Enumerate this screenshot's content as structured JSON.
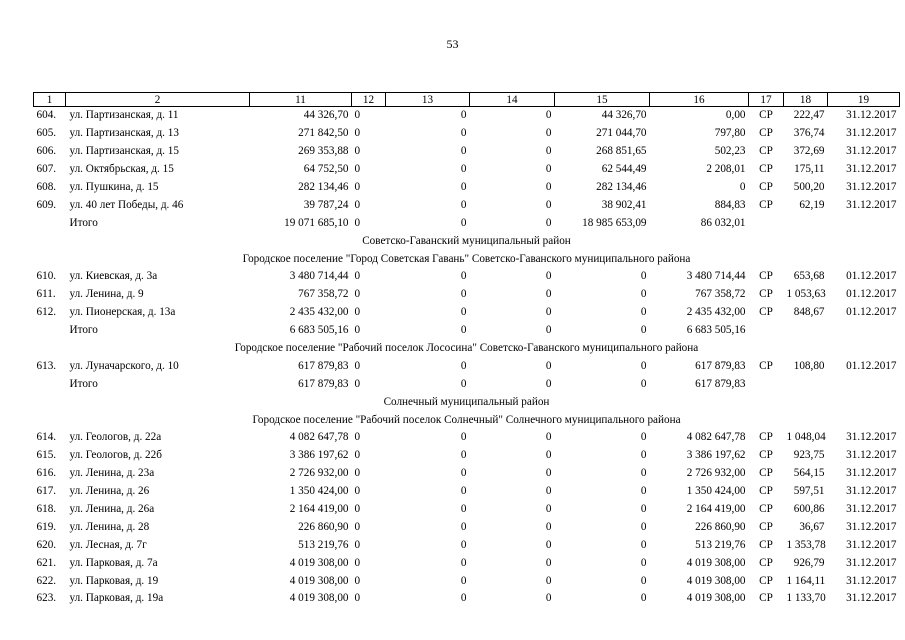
{
  "page_number": "53",
  "columns": [
    "1",
    "2",
    "11",
    "12",
    "13",
    "14",
    "15",
    "16",
    "17",
    "18",
    "19"
  ],
  "rows": [
    {
      "type": "data",
      "cells": [
        "604.",
        "ул. Партизанская, д. 11",
        "44 326,70",
        "0",
        "0",
        "0",
        "44 326,70",
        "0,00",
        "СР",
        "222,47",
        "31.12.2017"
      ]
    },
    {
      "type": "data",
      "cells": [
        "605.",
        "ул. Партизанская, д. 13",
        "271 842,50",
        "0",
        "0",
        "0",
        "271 044,70",
        "797,80",
        "СР",
        "376,74",
        "31.12.2017"
      ]
    },
    {
      "type": "data",
      "cells": [
        "606.",
        "ул. Партизанская, д. 15",
        "269 353,88",
        "0",
        "0",
        "0",
        "268 851,65",
        "502,23",
        "СР",
        "372,69",
        "31.12.2017"
      ]
    },
    {
      "type": "data",
      "cells": [
        "607.",
        "ул. Октябрьская, д. 15",
        "64 752,50",
        "0",
        "0",
        "0",
        "62 544,49",
        "2 208,01",
        "СР",
        "175,11",
        "31.12.2017"
      ]
    },
    {
      "type": "data",
      "cells": [
        "608.",
        "ул. Пушкина, д. 15",
        "282 134,46",
        "0",
        "0",
        "0",
        "282 134,46",
        "0",
        "СР",
        "500,20",
        "31.12.2017"
      ]
    },
    {
      "type": "data",
      "cells": [
        "609.",
        "ул. 40 лет Победы, д. 46",
        "39 787,24",
        "0",
        "0",
        "0",
        "38 902,41",
        "884,83",
        "СР",
        "62,19",
        "31.12.2017"
      ]
    },
    {
      "type": "data",
      "cells": [
        "",
        "Итого",
        "19 071 685,10",
        "0",
        "0",
        "0",
        "18 985 653,09",
        "86 032,01",
        "",
        "",
        ""
      ]
    },
    {
      "type": "section",
      "text": "Советско-Гаванский муниципальный район"
    },
    {
      "type": "section",
      "text": "Городское поселение \"Город Советская Гавань\" Советско-Гаванского муниципального района"
    },
    {
      "type": "data",
      "cells": [
        "610.",
        "ул. Киевская, д. 3а",
        "3 480 714,44",
        "0",
        "0",
        "0",
        "0",
        "3 480 714,44",
        "СР",
        "653,68",
        "01.12.2017"
      ]
    },
    {
      "type": "data",
      "cells": [
        "611.",
        "ул. Ленина, д. 9",
        "767 358,72",
        "0",
        "0",
        "0",
        "0",
        "767 358,72",
        "СР",
        "1 053,63",
        "01.12.2017"
      ]
    },
    {
      "type": "data",
      "cells": [
        "612.",
        "ул. Пионерская, д. 13а",
        "2 435 432,00",
        "0",
        "0",
        "0",
        "0",
        "2 435 432,00",
        "СР",
        "848,67",
        "01.12.2017"
      ]
    },
    {
      "type": "data",
      "cells": [
        "",
        "Итого",
        "6 683 505,16",
        "0",
        "0",
        "0",
        "0",
        "6 683 505,16",
        "",
        "",
        ""
      ]
    },
    {
      "type": "section",
      "text": "Городское поселение \"Рабочий поселок Лососина\" Советско-Гаванского муниципального района"
    },
    {
      "type": "data",
      "cells": [
        "613.",
        "ул. Луначарского, д. 10",
        "617 879,83",
        "0",
        "0",
        "0",
        "0",
        "617 879,83",
        "СР",
        "108,80",
        "01.12.2017"
      ]
    },
    {
      "type": "data",
      "cells": [
        "",
        "Итого",
        "617 879,83",
        "0",
        "0",
        "0",
        "0",
        "617 879,83",
        "",
        "",
        ""
      ]
    },
    {
      "type": "section",
      "text": "Солнечный муниципальный район"
    },
    {
      "type": "section",
      "text": "Городское поселение \"Рабочий поселок Солнечный\" Солнечного муниципального района"
    },
    {
      "type": "data",
      "cells": [
        "614.",
        "ул. Геологов, д. 22а",
        "4 082 647,78",
        "0",
        "0",
        "0",
        "0",
        "4 082 647,78",
        "СР",
        "1 048,04",
        "31.12.2017"
      ]
    },
    {
      "type": "data",
      "cells": [
        "615.",
        "ул. Геологов, д. 22б",
        "3 386 197,62",
        "0",
        "0",
        "0",
        "0",
        "3 386 197,62",
        "СР",
        "923,75",
        "31.12.2017"
      ]
    },
    {
      "type": "data",
      "cells": [
        "616.",
        "ул. Ленина, д. 23а",
        "2 726 932,00",
        "0",
        "0",
        "0",
        "0",
        "2 726 932,00",
        "СР",
        "564,15",
        "31.12.2017"
      ]
    },
    {
      "type": "data",
      "cells": [
        "617.",
        "ул. Ленина, д. 26",
        "1 350 424,00",
        "0",
        "0",
        "0",
        "0",
        "1 350 424,00",
        "СР",
        "597,51",
        "31.12.2017"
      ]
    },
    {
      "type": "data",
      "cells": [
        "618.",
        "ул. Ленина, д. 26а",
        "2 164 419,00",
        "0",
        "0",
        "0",
        "0",
        "2 164 419,00",
        "СР",
        "600,86",
        "31.12.2017"
      ]
    },
    {
      "type": "data",
      "cells": [
        "619.",
        "ул. Ленина, д. 28",
        "226 860,90",
        "0",
        "0",
        "0",
        "0",
        "226 860,90",
        "СР",
        "36,67",
        "31.12.2017"
      ]
    },
    {
      "type": "data",
      "cells": [
        "620.",
        "ул. Лесная, д. 7г",
        "513 219,76",
        "0",
        "0",
        "0",
        "0",
        "513 219,76",
        "СР",
        "1 353,78",
        "31.12.2017"
      ]
    },
    {
      "type": "data",
      "cells": [
        "621.",
        "ул. Парковая, д. 7а",
        "4 019 308,00",
        "0",
        "0",
        "0",
        "0",
        "4 019 308,00",
        "СР",
        "926,79",
        "31.12.2017"
      ]
    },
    {
      "type": "data",
      "cells": [
        "622.",
        "ул. Парковая, д. 19",
        "4 019 308,00",
        "0",
        "0",
        "0",
        "0",
        "4 019 308,00",
        "СР",
        "1 164,11",
        "31.12.2017"
      ]
    },
    {
      "type": "data",
      "cells": [
        "623.",
        "ул. Парковая, д. 19а",
        "4 019 308,00",
        "0",
        "0",
        "0",
        "0",
        "4 019 308,00",
        "СР",
        "1 133,70",
        "31.12.2017"
      ]
    }
  ]
}
